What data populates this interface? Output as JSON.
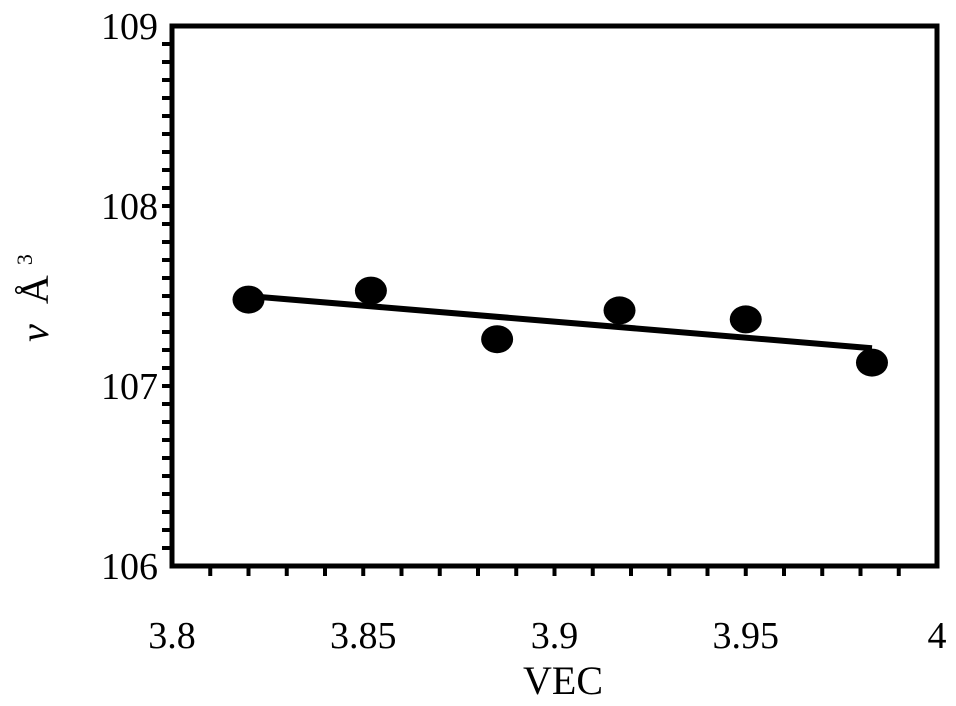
{
  "chart_data": {
    "type": "scatter",
    "title": "",
    "xlabel": "VEC",
    "ylabel": "v Å³",
    "ylabel_parts": {
      "symbol": "v",
      "unit": "Å",
      "exponent": "3"
    },
    "xlim": [
      3.8,
      4.0
    ],
    "ylim": [
      106,
      109
    ],
    "x_ticks": [
      3.8,
      3.85,
      3.9,
      3.95,
      4.0
    ],
    "x_tick_labels": [
      "3.8",
      "3.85",
      "3.9",
      "3.95",
      "4"
    ],
    "y_ticks": [
      106,
      107,
      108,
      109
    ],
    "y_tick_labels": [
      "106",
      "107",
      "108",
      "109"
    ],
    "x_minor_step": 0.01,
    "y_minor_step": 0.1,
    "grid": false,
    "legend": "none",
    "series": [
      {
        "points": [
          {
            "x": 3.82,
            "y": 107.48
          },
          {
            "x": 3.852,
            "y": 107.53
          },
          {
            "x": 3.885,
            "y": 107.26
          },
          {
            "x": 3.917,
            "y": 107.42
          },
          {
            "x": 3.95,
            "y": 107.37
          },
          {
            "x": 3.983,
            "y": 107.13
          }
        ],
        "marker_color": "#000000"
      }
    ],
    "trendline": {
      "type": "linear",
      "x_range": [
        3.82,
        3.983
      ],
      "y_values": [
        107.5,
        107.21
      ],
      "color": "#000000"
    }
  }
}
